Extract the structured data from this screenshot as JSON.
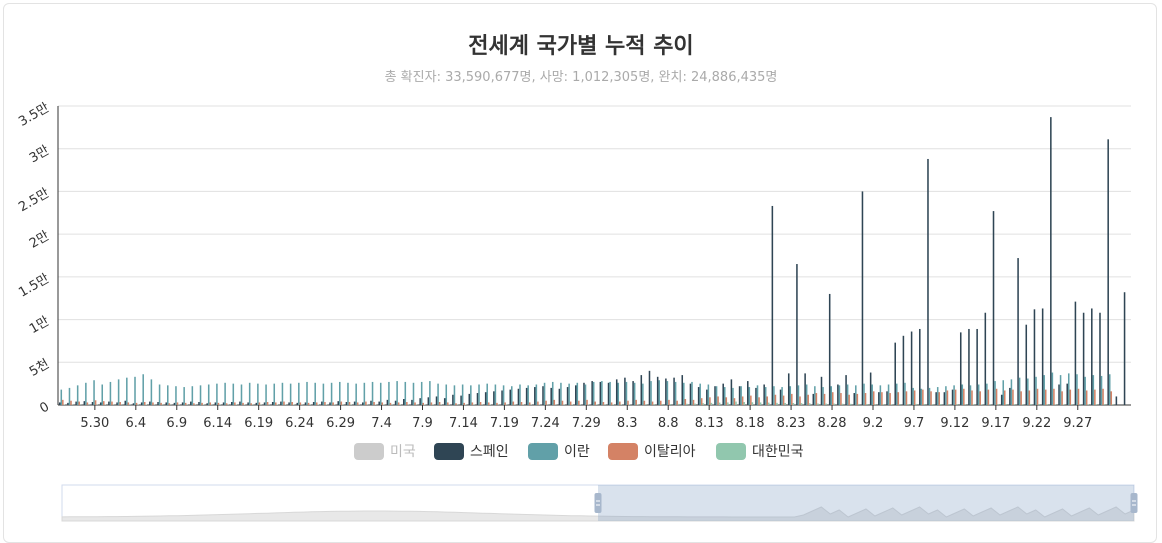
{
  "header": {
    "title": "전세계 국가별 누적 추이",
    "subtitle": "총 확진자: 33,590,677명, 사망: 1,012,305명, 완치: 24,886,435명"
  },
  "chart_data": {
    "type": "bar",
    "title": "전세계 국가별 누적 추이",
    "subtitle": "총 확진자: 33,590,677명, 사망: 1,012,305명, 완치: 24,886,435명",
    "y_ticks": [
      "0",
      "5천",
      "1만",
      "1.5만",
      "2만",
      "2.5만",
      "3만",
      "3.5만"
    ],
    "y_tick_values": [
      0,
      5000,
      10000,
      15000,
      20000,
      25000,
      30000,
      35000
    ],
    "ylim": [
      0,
      35000
    ],
    "x_tick_labels": [
      "5.30",
      "6.4",
      "6.9",
      "6.14",
      "6.19",
      "6.24",
      "6.29",
      "7.4",
      "7.9",
      "7.14",
      "7.19",
      "7.24",
      "7.29",
      "8.3",
      "8.8",
      "8.13",
      "8.18",
      "8.23",
      "8.28",
      "9.2",
      "9.7",
      "9.12",
      "9.17",
      "9.22",
      "9.27"
    ],
    "x_start": "5.26",
    "x_end": "9.28",
    "legend": {
      "position": "bottom",
      "items": [
        {
          "name": "미국",
          "color": "#cccccc",
          "active": false
        },
        {
          "name": "스페인",
          "color": "#2f4554",
          "active": true
        },
        {
          "name": "이란",
          "color": "#61a0a8",
          "active": true
        },
        {
          "name": "이탈리아",
          "color": "#d48265",
          "active": true
        },
        {
          "name": "대한민국",
          "color": "#91c7ae",
          "active": true
        }
      ]
    },
    "grid": true,
    "series": [
      {
        "name": "스페인",
        "color": "#2f4554",
        "values": [
          300,
          250,
          400,
          450,
          350,
          300,
          400,
          300,
          500,
          200,
          300,
          400,
          350,
          300,
          250,
          300,
          400,
          350,
          200,
          300,
          300,
          350,
          400,
          300,
          250,
          300,
          350,
          400,
          300,
          250,
          300,
          350,
          400,
          300,
          450,
          350,
          400,
          300,
          500,
          400,
          600,
          500,
          700,
          600,
          800,
          900,
          1000,
          800,
          1200,
          1100,
          1300,
          1400,
          1500,
          1600,
          1700,
          1800,
          1900,
          2000,
          2100,
          2200,
          2000,
          1900,
          2100,
          2300,
          2600,
          2800,
          2700,
          2600,
          3000,
          3200,
          2800,
          3500,
          4000,
          3300,
          3100,
          3200,
          3500,
          2500,
          2100,
          1800,
          2200,
          2500,
          3000,
          2200,
          2800,
          2000,
          2400,
          23300,
          1800,
          3700,
          16500,
          3700,
          1300,
          3300,
          13000,
          2400,
          3500,
          1400,
          25000,
          3800,
          1500,
          1600,
          7300,
          8100,
          8600,
          8900,
          28800,
          1500,
          1500,
          1800,
          8500,
          8900,
          8900,
          10800,
          22700,
          1200,
          2000,
          17200,
          9400,
          11200,
          11300,
          33700,
          2400,
          2500,
          12100,
          10800,
          11300,
          10800,
          31100,
          1000,
          13200
        ]
      },
      {
        "name": "이란",
        "color": "#61a0a8",
        "values": [
          1800,
          2000,
          2300,
          2600,
          2900,
          2400,
          2700,
          3000,
          3200,
          3300,
          3600,
          3000,
          2400,
          2300,
          2200,
          2100,
          2200,
          2300,
          2400,
          2500,
          2600,
          2500,
          2400,
          2600,
          2500,
          2400,
          2500,
          2600,
          2500,
          2600,
          2700,
          2600,
          2500,
          2600,
          2700,
          2600,
          2500,
          2600,
          2700,
          2600,
          2700,
          2800,
          2700,
          2600,
          2700,
          2800,
          2500,
          2400,
          2300,
          2400,
          2300,
          2400,
          2500,
          2400,
          2300,
          2200,
          2400,
          2300,
          2400,
          2600,
          2700,
          2600,
          2500,
          2600,
          2400,
          2700,
          2800,
          2700,
          2600,
          2700,
          2600,
          2500,
          2800,
          2900,
          2800,
          2700,
          2600,
          2700,
          2500,
          2400,
          2200,
          2100,
          2000,
          2200,
          2100,
          2300,
          2100,
          2200,
          2100,
          2200,
          2300,
          2400,
          2200,
          2100,
          2200,
          2300,
          2400,
          2300,
          2500,
          2400,
          2300,
          2400,
          2500,
          2600,
          2000,
          1900,
          2000,
          2100,
          2200,
          2300,
          2400,
          2300,
          2400,
          2500,
          2800,
          2900,
          3000,
          3200,
          3100,
          3300,
          3500,
          3800,
          3500,
          3700,
          3600,
          3300,
          3500,
          3400,
          3600
        ]
      },
      {
        "name": "이탈리아",
        "color": "#d48265",
        "values": [
          600,
          500,
          400,
          300,
          550,
          450,
          400,
          350,
          300,
          250,
          350,
          300,
          250,
          200,
          300,
          250,
          200,
          250,
          300,
          250,
          200,
          300,
          250,
          200,
          300,
          350,
          300,
          400,
          350,
          300,
          250,
          300,
          350,
          300,
          400,
          350,
          300,
          400,
          350,
          300,
          250,
          300,
          350,
          300,
          250,
          300,
          350,
          300,
          200,
          250,
          300,
          350,
          300,
          250,
          300,
          400,
          350,
          300,
          400,
          500,
          600,
          500,
          400,
          500,
          600,
          400,
          350,
          300,
          400,
          500,
          600,
          500,
          400,
          500,
          600,
          500,
          700,
          600,
          800,
          900,
          1000,
          900,
          800,
          1000,
          1100,
          900,
          1000,
          1200,
          1100,
          1300,
          1000,
          1200,
          1400,
          1300,
          1500,
          1400,
          1200,
          1300,
          1400,
          1600,
          1500,
          1400,
          1500,
          1600,
          1700,
          1800,
          1600,
          1500,
          1700,
          1800,
          1900,
          1700,
          1600,
          1800,
          1900,
          1700,
          1800,
          1600,
          1700,
          1900,
          1800,
          1900,
          1600,
          1800,
          1900,
          1700,
          1800,
          1900,
          1600
        ]
      },
      {
        "name": "대한민국",
        "color": "#91c7ae",
        "values": [
          50,
          40,
          30,
          35,
          45,
          50,
          40,
          30,
          45,
          50,
          60,
          45,
          40,
          35,
          50,
          45,
          40,
          60,
          45,
          50,
          40,
          55,
          60,
          45,
          50,
          40,
          60,
          65,
          55,
          45,
          50,
          60,
          65,
          55,
          50,
          60,
          45,
          40,
          60,
          55,
          45,
          50,
          40,
          45,
          60,
          55,
          50,
          45,
          40,
          60,
          55,
          45,
          50,
          40,
          45,
          55,
          60,
          45,
          50,
          40,
          45,
          55,
          60,
          45,
          50,
          70,
          80,
          65,
          70,
          75,
          80,
          90,
          100,
          120,
          110,
          130,
          150,
          170,
          200,
          250,
          280,
          300,
          400,
          350,
          320,
          300,
          280,
          250,
          240,
          230,
          220,
          200,
          180,
          170,
          160,
          150,
          140,
          130,
          120,
          110,
          100,
          90,
          120,
          110,
          130,
          120,
          100,
          110,
          120,
          110,
          100,
          90,
          80,
          100,
          110,
          120,
          100,
          90,
          110,
          120,
          100,
          90,
          80,
          100,
          110,
          90,
          100,
          110,
          95
        ]
      }
    ]
  },
  "data_zoom": {
    "selected_range": "8.18–9.28"
  }
}
